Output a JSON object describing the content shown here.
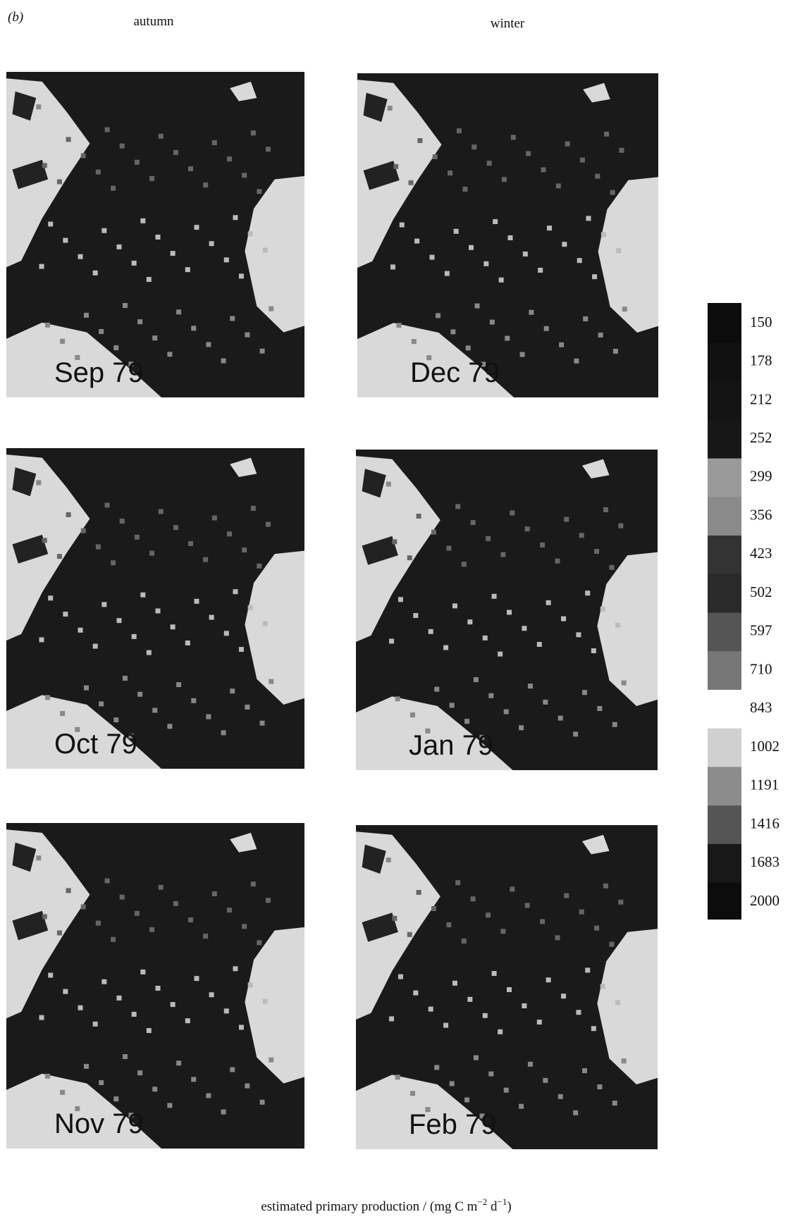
{
  "header": {
    "panel": "(b)",
    "columns": [
      "autumn",
      "winter"
    ]
  },
  "panels": [
    {
      "label": "Sep 79"
    },
    {
      "label": "Dec 79"
    },
    {
      "label": "Oct 79"
    },
    {
      "label": "Jan 79"
    },
    {
      "label": "Nov 79"
    },
    {
      "label": "Feb 79"
    }
  ],
  "colorbar": {
    "ticks": [
      150,
      178,
      212,
      252,
      299,
      356,
      423,
      502,
      597,
      710,
      843,
      1002,
      1191,
      1416,
      1683,
      2000
    ],
    "label": [
      "estimated primary production / (mg C m",
      "−2",
      " d",
      "−1",
      ")"
    ]
  }
}
